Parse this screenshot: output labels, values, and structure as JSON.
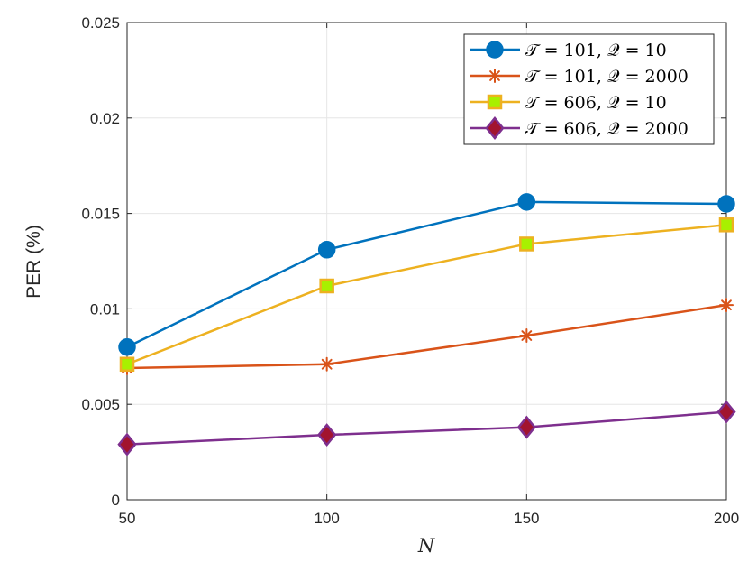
{
  "chart_data": {
    "type": "line",
    "title": "",
    "xlabel": "N",
    "ylabel": "PER (%)",
    "x": [
      50,
      100,
      150,
      200
    ],
    "xlim": [
      50,
      200
    ],
    "ylim": [
      0,
      0.025
    ],
    "xticks": [
      50,
      100,
      150,
      200
    ],
    "xtick_labels": [
      "50",
      "100",
      "150",
      "200"
    ],
    "yticks": [
      0,
      0.005,
      0.01,
      0.015,
      0.02,
      0.025
    ],
    "ytick_labels": [
      "0",
      "0.005",
      "0.01",
      "0.015",
      "0.02",
      "0.025"
    ],
    "grid": true,
    "legend_position": "top-right",
    "series": [
      {
        "name": "𝒯 = 101, 𝒬 = 10",
        "color": "#0072BD",
        "marker": "circle",
        "values": [
          0.008,
          0.0131,
          0.0156,
          0.0155
        ]
      },
      {
        "name": "𝒯 = 101, 𝒬 = 2000",
        "color": "#D95319",
        "marker": "asterisk",
        "values": [
          0.0069,
          0.0071,
          0.0086,
          0.0102
        ]
      },
      {
        "name": "𝒯 = 606, 𝒬 = 10",
        "color": "#EDB120",
        "marker": "square",
        "marker_fill": "#A8F000",
        "values": [
          0.0071,
          0.0112,
          0.0134,
          0.0144
        ]
      },
      {
        "name": "𝒯 = 606, 𝒬 = 2000",
        "color": "#7E2F8E",
        "marker": "diamond",
        "marker_fill": "#A2142F",
        "values": [
          0.0029,
          0.0034,
          0.0038,
          0.0046
        ]
      }
    ]
  }
}
